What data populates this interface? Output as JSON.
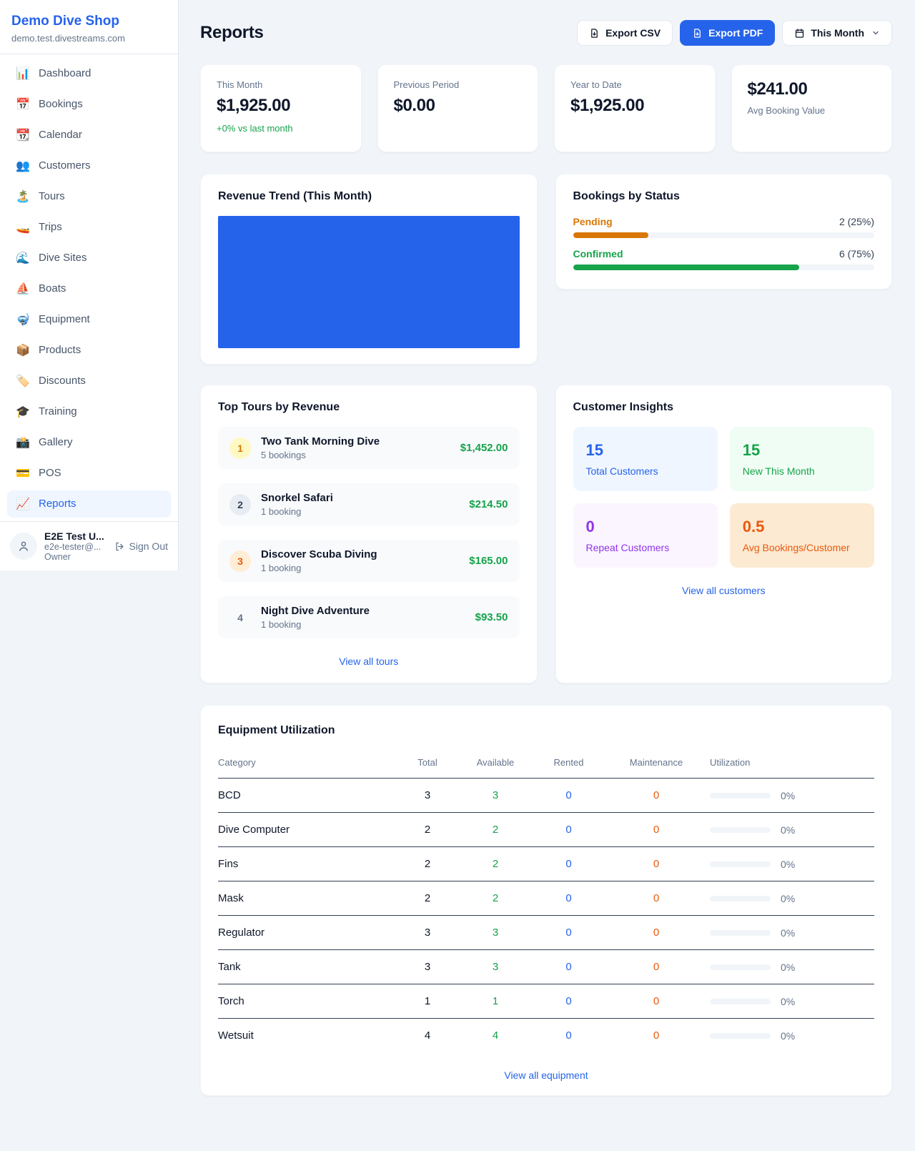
{
  "colors": {
    "brand_blue": "#2563eb",
    "green": "#16a34a",
    "amber": "#d97706",
    "orange": "#ea580c",
    "purple": "#9333ea",
    "page_bg": "#f1f5f9"
  },
  "sidebar": {
    "shop_name": "Demo Dive Shop",
    "shop_domain": "demo.test.divestreams.com",
    "nav": [
      {
        "icon": "📊",
        "label": "Dashboard"
      },
      {
        "icon": "📅",
        "label": "Bookings"
      },
      {
        "icon": "📆",
        "label": "Calendar"
      },
      {
        "icon": "👥",
        "label": "Customers"
      },
      {
        "icon": "🏝️",
        "label": "Tours"
      },
      {
        "icon": "🚤",
        "label": "Trips"
      },
      {
        "icon": "🌊",
        "label": "Dive Sites"
      },
      {
        "icon": "⛵",
        "label": "Boats"
      },
      {
        "icon": "🤿",
        "label": "Equipment"
      },
      {
        "icon": "📦",
        "label": "Products"
      },
      {
        "icon": "🏷️",
        "label": "Discounts"
      },
      {
        "icon": "🎓",
        "label": "Training"
      },
      {
        "icon": "📸",
        "label": "Gallery"
      },
      {
        "icon": "💳",
        "label": "POS"
      },
      {
        "icon": "📈",
        "label": "Reports"
      }
    ],
    "user": {
      "name": "E2E Test U...",
      "email": "e2e-tester@...",
      "role": "Owner",
      "sign_out_label": "Sign Out"
    }
  },
  "header": {
    "title": "Reports",
    "export_csv_label": "Export CSV",
    "export_pdf_label": "Export PDF",
    "period_label": "This Month"
  },
  "stats": [
    {
      "label": "This Month",
      "value": "$1,925.00",
      "delta": "+0% vs last month"
    },
    {
      "label": "Previous Period",
      "value": "$0.00"
    },
    {
      "label": "Year to Date",
      "value": "$1,925.00"
    },
    {
      "value": "$241.00",
      "label": "Avg Booking Value"
    }
  ],
  "revenue_trend": {
    "title": "Revenue Trend (This Month)",
    "chart_data": {
      "type": "bar",
      "bars": [
        {
          "label": "",
          "value_pct": 100
        }
      ],
      "bar_color": "#2563eb",
      "note": "single solid blue bar filling the whole plot area; no axes, ticks or labels visible"
    }
  },
  "bookings_by_status": {
    "title": "Bookings by Status",
    "rows": [
      {
        "label": "Pending",
        "value_text": "2 (25%)",
        "pct": 25,
        "color": "#d97706"
      },
      {
        "label": "Confirmed",
        "value_text": "6 (75%)",
        "pct": 75,
        "color": "#16a34a"
      }
    ]
  },
  "top_tours": {
    "title": "Top Tours by Revenue",
    "items": [
      {
        "rank": "1",
        "name": "Two Tank Morning Dive",
        "bookings": "5 bookings",
        "revenue": "$1,452.00"
      },
      {
        "rank": "2",
        "name": "Snorkel Safari",
        "bookings": "1 booking",
        "revenue": "$214.50"
      },
      {
        "rank": "3",
        "name": "Discover Scuba Diving",
        "bookings": "1 booking",
        "revenue": "$165.00"
      },
      {
        "rank": "4",
        "name": "Night Dive Adventure",
        "bookings": "1 booking",
        "revenue": "$93.50"
      }
    ],
    "view_all_label": "View all tours"
  },
  "customer_insights": {
    "title": "Customer Insights",
    "tiles": [
      {
        "value": "15",
        "label": "Total Customers"
      },
      {
        "value": "15",
        "label": "New This Month"
      },
      {
        "value": "0",
        "label": "Repeat Customers"
      },
      {
        "value": "0.5",
        "label": "Avg Bookings/Customer"
      }
    ],
    "view_all_label": "View all customers"
  },
  "equipment": {
    "title": "Equipment Utilization",
    "columns": [
      "Category",
      "Total",
      "Available",
      "Rented",
      "Maintenance",
      "Utilization"
    ],
    "rows": [
      {
        "category": "BCD",
        "total": "3",
        "available": "3",
        "rented": "0",
        "maintenance": "0",
        "utilization_pct": 0,
        "utilization_label": "0%"
      },
      {
        "category": "Dive Computer",
        "total": "2",
        "available": "2",
        "rented": "0",
        "maintenance": "0",
        "utilization_pct": 0,
        "utilization_label": "0%"
      },
      {
        "category": "Fins",
        "total": "2",
        "available": "2",
        "rented": "0",
        "maintenance": "0",
        "utilization_pct": 0,
        "utilization_label": "0%"
      },
      {
        "category": "Mask",
        "total": "2",
        "available": "2",
        "rented": "0",
        "maintenance": "0",
        "utilization_pct": 0,
        "utilization_label": "0%"
      },
      {
        "category": "Regulator",
        "total": "3",
        "available": "3",
        "rented": "0",
        "maintenance": "0",
        "utilization_pct": 0,
        "utilization_label": "0%"
      },
      {
        "category": "Tank",
        "total": "3",
        "available": "3",
        "rented": "0",
        "maintenance": "0",
        "utilization_pct": 0,
        "utilization_label": "0%"
      },
      {
        "category": "Torch",
        "total": "1",
        "available": "1",
        "rented": "0",
        "maintenance": "0",
        "utilization_pct": 0,
        "utilization_label": "0%"
      },
      {
        "category": "Wetsuit",
        "total": "4",
        "available": "4",
        "rented": "0",
        "maintenance": "0",
        "utilization_pct": 0,
        "utilization_label": "0%"
      }
    ],
    "view_all_label": "View all equipment"
  }
}
